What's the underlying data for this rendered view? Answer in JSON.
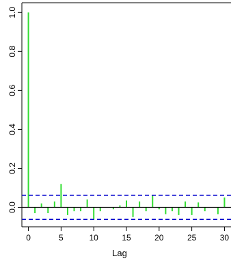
{
  "chart_data": {
    "type": "bar",
    "title": "",
    "xlabel": "Lag",
    "ylabel": "",
    "x_ticks": [
      "0",
      "5",
      "10",
      "15",
      "20",
      "25",
      "30"
    ],
    "y_ticks": [
      "0.0",
      "0.2",
      "0.4",
      "0.6",
      "0.8",
      "1.0"
    ],
    "xlim": [
      -1,
      31
    ],
    "ylim": [
      -0.1,
      1.05
    ],
    "grid": false,
    "legend": "none",
    "bar_color": "#33dd33",
    "confidence_color": "#0000cc",
    "confidence_bound": 0.062,
    "zero_line_color": "#000000",
    "lags": [
      0,
      1,
      2,
      3,
      4,
      5,
      6,
      7,
      8,
      9,
      10,
      11,
      12,
      13,
      14,
      15,
      16,
      17,
      18,
      19,
      20,
      21,
      22,
      23,
      24,
      25,
      26,
      27,
      28,
      29,
      30
    ],
    "values": [
      1.0,
      -0.03,
      0.02,
      -0.03,
      0.03,
      0.12,
      -0.04,
      -0.02,
      -0.02,
      0.04,
      -0.06,
      -0.02,
      0.0,
      -0.01,
      0.01,
      0.035,
      -0.05,
      0.03,
      -0.02,
      0.06,
      -0.01,
      -0.035,
      -0.02,
      -0.04,
      0.03,
      -0.04,
      0.025,
      -0.02,
      0.0,
      -0.035,
      0.05
    ]
  }
}
